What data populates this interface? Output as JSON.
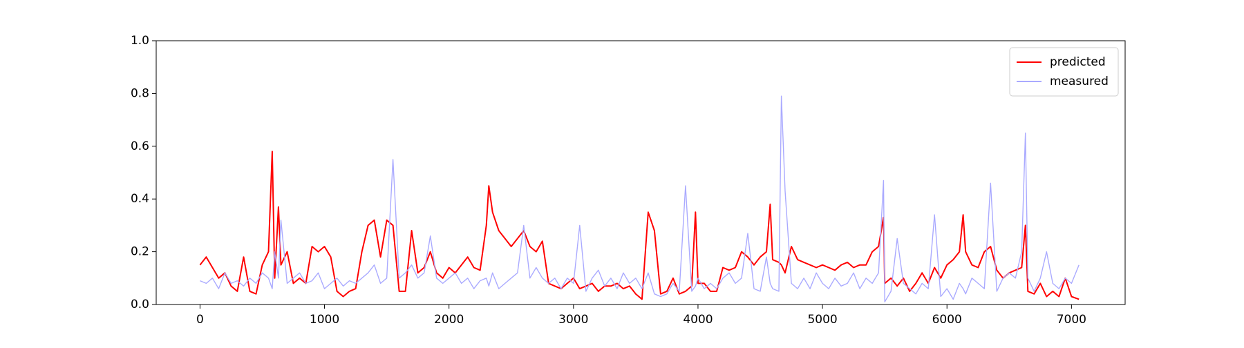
{
  "chart_data": {
    "type": "line",
    "x": [
      0,
      50,
      100,
      150,
      200,
      250,
      300,
      350,
      400,
      450,
      500,
      550,
      580,
      600,
      630,
      650,
      700,
      750,
      800,
      850,
      900,
      950,
      1000,
      1050,
      1100,
      1150,
      1200,
      1250,
      1300,
      1350,
      1400,
      1450,
      1500,
      1550,
      1600,
      1650,
      1700,
      1750,
      1800,
      1850,
      1900,
      1950,
      2000,
      2050,
      2100,
      2150,
      2200,
      2250,
      2300,
      2320,
      2350,
      2400,
      2450,
      2500,
      2550,
      2600,
      2650,
      2700,
      2750,
      2800,
      2850,
      2900,
      2950,
      3000,
      3050,
      3100,
      3150,
      3200,
      3250,
      3300,
      3350,
      3400,
      3450,
      3500,
      3550,
      3600,
      3650,
      3700,
      3750,
      3800,
      3850,
      3900,
      3950,
      3980,
      4000,
      4050,
      4100,
      4150,
      4200,
      4250,
      4300,
      4350,
      4400,
      4450,
      4500,
      4550,
      4580,
      4600,
      4650,
      4670,
      4700,
      4750,
      4800,
      4850,
      4900,
      4950,
      5000,
      5050,
      5100,
      5150,
      5200,
      5250,
      5300,
      5350,
      5400,
      5450,
      5490,
      5500,
      5550,
      5600,
      5650,
      5700,
      5750,
      5800,
      5850,
      5900,
      5950,
      6000,
      6050,
      6100,
      6130,
      6150,
      6200,
      6250,
      6300,
      6350,
      6400,
      6450,
      6500,
      6550,
      6600,
      6630,
      6650,
      6700,
      6750,
      6800,
      6850,
      6900,
      6950,
      7000,
      7060
    ],
    "series": [
      {
        "name": "predicted",
        "color": "#ff0000",
        "values": [
          0.15,
          0.18,
          0.14,
          0.1,
          0.12,
          0.07,
          0.05,
          0.18,
          0.05,
          0.04,
          0.15,
          0.2,
          0.58,
          0.1,
          0.37,
          0.15,
          0.2,
          0.08,
          0.1,
          0.08,
          0.22,
          0.2,
          0.22,
          0.18,
          0.05,
          0.03,
          0.05,
          0.06,
          0.2,
          0.3,
          0.32,
          0.18,
          0.32,
          0.3,
          0.05,
          0.05,
          0.28,
          0.12,
          0.14,
          0.2,
          0.12,
          0.1,
          0.14,
          0.12,
          0.15,
          0.18,
          0.14,
          0.13,
          0.3,
          0.45,
          0.35,
          0.28,
          0.25,
          0.22,
          0.25,
          0.28,
          0.22,
          0.2,
          0.24,
          0.08,
          0.07,
          0.06,
          0.08,
          0.1,
          0.06,
          0.07,
          0.08,
          0.05,
          0.07,
          0.07,
          0.08,
          0.06,
          0.07,
          0.04,
          0.02,
          0.35,
          0.28,
          0.04,
          0.05,
          0.1,
          0.04,
          0.05,
          0.07,
          0.35,
          0.08,
          0.08,
          0.05,
          0.05,
          0.14,
          0.13,
          0.14,
          0.2,
          0.18,
          0.15,
          0.18,
          0.2,
          0.38,
          0.17,
          0.16,
          0.15,
          0.12,
          0.22,
          0.17,
          0.16,
          0.15,
          0.14,
          0.15,
          0.14,
          0.13,
          0.15,
          0.16,
          0.14,
          0.15,
          0.15,
          0.2,
          0.22,
          0.33,
          0.08,
          0.1,
          0.07,
          0.1,
          0.05,
          0.08,
          0.12,
          0.08,
          0.14,
          0.1,
          0.15,
          0.17,
          0.2,
          0.34,
          0.2,
          0.15,
          0.14,
          0.2,
          0.22,
          0.13,
          0.1,
          0.12,
          0.13,
          0.14,
          0.3,
          0.05,
          0.04,
          0.08,
          0.03,
          0.05,
          0.03,
          0.1,
          0.03,
          0.02
        ]
      },
      {
        "name": "measured",
        "color": "#aaaaff",
        "values": [
          0.09,
          0.08,
          0.1,
          0.06,
          0.12,
          0.08,
          0.09,
          0.07,
          0.1,
          0.08,
          0.12,
          0.1,
          0.06,
          0.2,
          0.1,
          0.32,
          0.08,
          0.1,
          0.12,
          0.08,
          0.09,
          0.12,
          0.06,
          0.08,
          0.1,
          0.07,
          0.09,
          0.08,
          0.1,
          0.12,
          0.15,
          0.08,
          0.1,
          0.55,
          0.1,
          0.12,
          0.15,
          0.1,
          0.12,
          0.26,
          0.1,
          0.08,
          0.1,
          0.12,
          0.08,
          0.1,
          0.06,
          0.09,
          0.1,
          0.07,
          0.12,
          0.06,
          0.08,
          0.1,
          0.12,
          0.3,
          0.1,
          0.14,
          0.1,
          0.08,
          0.1,
          0.06,
          0.1,
          0.08,
          0.3,
          0.05,
          0.1,
          0.13,
          0.07,
          0.1,
          0.06,
          0.12,
          0.08,
          0.1,
          0.06,
          0.12,
          0.04,
          0.03,
          0.04,
          0.08,
          0.05,
          0.45,
          0.05,
          0.07,
          0.1,
          0.06,
          0.08,
          0.06,
          0.1,
          0.12,
          0.08,
          0.1,
          0.27,
          0.06,
          0.05,
          0.18,
          0.08,
          0.06,
          0.05,
          0.79,
          0.43,
          0.08,
          0.06,
          0.1,
          0.06,
          0.12,
          0.08,
          0.06,
          0.1,
          0.07,
          0.08,
          0.12,
          0.06,
          0.1,
          0.08,
          0.12,
          0.47,
          0.01,
          0.05,
          0.25,
          0.08,
          0.06,
          0.04,
          0.08,
          0.06,
          0.34,
          0.03,
          0.06,
          0.02,
          0.08,
          0.06,
          0.04,
          0.1,
          0.08,
          0.06,
          0.46,
          0.05,
          0.1,
          0.12,
          0.1,
          0.2,
          0.65,
          0.1,
          0.05,
          0.1,
          0.2,
          0.08,
          0.06,
          0.1,
          0.08,
          0.15
        ]
      }
    ],
    "xlim": [
      -352,
      7431
    ],
    "ylim": [
      0,
      1
    ],
    "xticks": [
      0,
      1000,
      2000,
      3000,
      4000,
      5000,
      6000,
      7000
    ],
    "yticks": [
      {
        "value": 0,
        "label": "0.0"
      },
      0.2,
      0.4,
      0.6,
      0.8,
      {
        "value": 1,
        "label": "1.0"
      }
    ],
    "legend": "upper right"
  }
}
